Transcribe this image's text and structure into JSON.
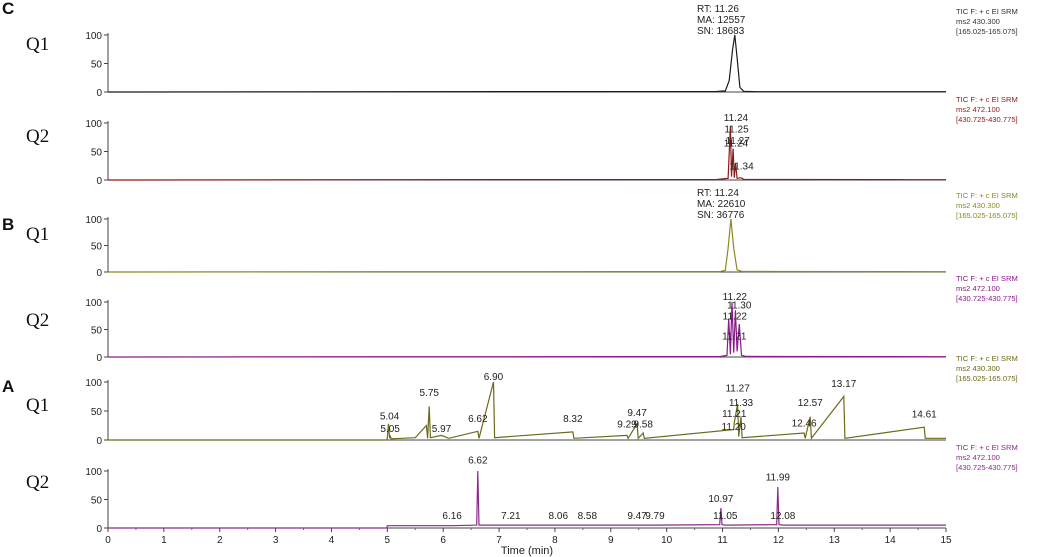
{
  "section_letters": [
    "C",
    "B",
    "A"
  ],
  "x_axis": {
    "label": "Time (min)",
    "ticks": [
      0,
      1,
      2,
      3,
      4,
      5,
      6,
      7,
      8,
      9,
      10,
      11,
      12,
      13,
      14,
      15
    ],
    "range": [
      0,
      15
    ]
  },
  "chart_data": [
    {
      "type": "line",
      "group": "C",
      "q_label": "Q1",
      "color": "#1b1b1b",
      "y_ticks": [
        0,
        50,
        100
      ],
      "ylim": [
        0,
        100
      ],
      "legend": [
        "TIC F: + c EI SRM",
        "ms2 430.300",
        "[165.025-165.075]"
      ],
      "legend_color": "#333333",
      "annotations_block": [
        "RT: 11.26",
        "MA: 12557",
        "SN: 18683"
      ],
      "points": [
        [
          0,
          0
        ],
        [
          5,
          0.6
        ],
        [
          10.9,
          0.8
        ],
        [
          11.05,
          2
        ],
        [
          11.12,
          20
        ],
        [
          11.18,
          75
        ],
        [
          11.22,
          100
        ],
        [
          11.26,
          60
        ],
        [
          11.31,
          8
        ],
        [
          11.38,
          1
        ],
        [
          11.6,
          0.6
        ],
        [
          15,
          0.6
        ]
      ],
      "peak_labels": []
    },
    {
      "type": "line",
      "group": "C",
      "q_label": "Q2",
      "color": "#8b1a1a",
      "y_ticks": [
        0,
        50,
        100
      ],
      "ylim": [
        0,
        100
      ],
      "legend": [
        "TIC F: + c EI SRM",
        "ms2 472.100",
        "[430.725-430.775]"
      ],
      "legend_color": "#8b1a1a",
      "points": [
        [
          0,
          0
        ],
        [
          5,
          0.6
        ],
        [
          10.9,
          0.8
        ],
        [
          11.1,
          3
        ],
        [
          11.14,
          95
        ],
        [
          11.16,
          6
        ],
        [
          11.19,
          55
        ],
        [
          11.21,
          4
        ],
        [
          11.23,
          30
        ],
        [
          11.26,
          3
        ],
        [
          11.33,
          4
        ],
        [
          11.38,
          1
        ],
        [
          14.4,
          0.6
        ],
        [
          15,
          0.6
        ]
      ],
      "peak_labels": [
        {
          "text": "11.24",
          "x": 11.24,
          "y": 100
        },
        {
          "text": "11.25",
          "x": 11.25,
          "y": 80
        },
        {
          "text": "11.24",
          "x": 11.24,
          "y": 55
        },
        {
          "text": "11.27",
          "x": 11.27,
          "y": 60
        },
        {
          "text": "11.34",
          "x": 11.34,
          "y": 15
        }
      ]
    },
    {
      "type": "line",
      "group": "B",
      "q_label": "Q1",
      "color": "#8a8a1f",
      "y_ticks": [
        0,
        50,
        100
      ],
      "ylim": [
        0,
        100
      ],
      "legend": [
        "TIC F: + c EI SRM",
        "ms2 430.300",
        "[165.025-165.075]"
      ],
      "legend_color": "#8a8a1f",
      "annotations_block": [
        "RT: 11.24",
        "MA: 22610",
        "SN: 36776"
      ],
      "points": [
        [
          0,
          0
        ],
        [
          5,
          0.6
        ],
        [
          10.95,
          0.8
        ],
        [
          11.05,
          3
        ],
        [
          11.1,
          45
        ],
        [
          11.15,
          100
        ],
        [
          11.2,
          45
        ],
        [
          11.26,
          4
        ],
        [
          11.35,
          1
        ],
        [
          15,
          0.6
        ]
      ],
      "peak_labels": []
    },
    {
      "type": "line",
      "group": "B",
      "q_label": "Q2",
      "color": "#8b1a8b",
      "y_ticks": [
        0,
        50,
        100
      ],
      "ylim": [
        0,
        100
      ],
      "legend": [
        "TIC F: + c EI SRM",
        "ms2 472.100",
        "[430.725-430.775]"
      ],
      "legend_color": "#8b1a8b",
      "points": [
        [
          0,
          0
        ],
        [
          5,
          0.6
        ],
        [
          10.95,
          0.8
        ],
        [
          11.08,
          3
        ],
        [
          11.11,
          70
        ],
        [
          11.14,
          5
        ],
        [
          11.17,
          100
        ],
        [
          11.2,
          8
        ],
        [
          11.23,
          85
        ],
        [
          11.26,
          10
        ],
        [
          11.3,
          60
        ],
        [
          11.34,
          3
        ],
        [
          11.42,
          1
        ],
        [
          15,
          0.6
        ]
      ],
      "peak_labels": [
        {
          "text": "11.22",
          "x": 11.22,
          "y": 100
        },
        {
          "text": "11.30",
          "x": 11.3,
          "y": 85
        },
        {
          "text": "11.22",
          "x": 11.22,
          "y": 65
        },
        {
          "text": "11.21",
          "x": 11.21,
          "y": 28
        }
      ]
    },
    {
      "type": "line",
      "group": "A",
      "q_label": "Q1",
      "color": "#6b6b1a",
      "y_ticks": [
        0,
        50,
        100
      ],
      "ylim": [
        0,
        100
      ],
      "legend": [
        "TIC F: + c EI SRM",
        "ms2 430.300",
        "[165.025-165.075]"
      ],
      "legend_color": "#6b6b1a",
      "points": [
        [
          0,
          0
        ],
        [
          4.99,
          0
        ],
        [
          5,
          3
        ],
        [
          5.02,
          28
        ],
        [
          5.04,
          3
        ],
        [
          5.05,
          8
        ],
        [
          5.07,
          2
        ],
        [
          5.5,
          4
        ],
        [
          5.7,
          25
        ],
        [
          5.72,
          3
        ],
        [
          5.75,
          58
        ],
        [
          5.77,
          4
        ],
        [
          5.97,
          8
        ],
        [
          6.1,
          3
        ],
        [
          6.62,
          15
        ],
        [
          6.64,
          3
        ],
        [
          6.9,
          100
        ],
        [
          6.92,
          4
        ],
        [
          8.32,
          14
        ],
        [
          8.34,
          3
        ],
        [
          9.29,
          8
        ],
        [
          9.31,
          3
        ],
        [
          9.47,
          28
        ],
        [
          9.49,
          3
        ],
        [
          9.58,
          12
        ],
        [
          9.6,
          3
        ],
        [
          11.2,
          18
        ],
        [
          11.21,
          30
        ],
        [
          11.27,
          62
        ],
        [
          11.29,
          6
        ],
        [
          11.33,
          40
        ],
        [
          11.35,
          4
        ],
        [
          12.46,
          12
        ],
        [
          12.48,
          3
        ],
        [
          12.57,
          40
        ],
        [
          12.59,
          3
        ],
        [
          13.17,
          75
        ],
        [
          13.19,
          3
        ],
        [
          14.61,
          22
        ],
        [
          14.63,
          3
        ],
        [
          15,
          3
        ]
      ],
      "peak_labels": [
        {
          "text": "6.90",
          "x": 6.9,
          "y": 100
        },
        {
          "text": "5.75",
          "x": 5.75,
          "y": 72
        },
        {
          "text": "5.04",
          "x": 5.04,
          "y": 32
        },
        {
          "text": "5.05",
          "x": 5.05,
          "y": 10
        },
        {
          "text": "5.97",
          "x": 5.97,
          "y": 10
        },
        {
          "text": "6.62",
          "x": 6.62,
          "y": 28
        },
        {
          "text": "8.32",
          "x": 8.32,
          "y": 28
        },
        {
          "text": "9.29",
          "x": 9.29,
          "y": 18
        },
        {
          "text": "9.47",
          "x": 9.47,
          "y": 38
        },
        {
          "text": "9.58",
          "x": 9.58,
          "y": 18
        },
        {
          "text": "11.21",
          "x": 11.21,
          "y": 36
        },
        {
          "text": "11.20",
          "x": 11.2,
          "y": 14
        },
        {
          "text": "11.27",
          "x": 11.27,
          "y": 80
        },
        {
          "text": "11.33",
          "x": 11.33,
          "y": 55
        },
        {
          "text": "12.46",
          "x": 12.46,
          "y": 20
        },
        {
          "text": "12.57",
          "x": 12.57,
          "y": 55
        },
        {
          "text": "13.17",
          "x": 13.17,
          "y": 88
        },
        {
          "text": "14.61",
          "x": 14.61,
          "y": 35
        }
      ]
    },
    {
      "type": "line",
      "group": "A",
      "q_label": "Q2",
      "color": "#8b2a8b",
      "y_ticks": [
        0,
        50,
        100
      ],
      "ylim": [
        0,
        100
      ],
      "legend": [
        "TIC F: + c EI SRM",
        "ms2 472.100",
        "[430.725-430.775]"
      ],
      "legend_color": "#8b2a8b",
      "points": [
        [
          0,
          0
        ],
        [
          4.99,
          0
        ],
        [
          5,
          4
        ],
        [
          6.16,
          4
        ],
        [
          6.6,
          5
        ],
        [
          6.62,
          100
        ],
        [
          6.64,
          5
        ],
        [
          7.21,
          5
        ],
        [
          8.06,
          5
        ],
        [
          8.58,
          5
        ],
        [
          9.47,
          5
        ],
        [
          9.79,
          5
        ],
        [
          10.95,
          6
        ],
        [
          10.97,
          35
        ],
        [
          10.99,
          6
        ],
        [
          11.05,
          5
        ],
        [
          11.97,
          6
        ],
        [
          11.99,
          72
        ],
        [
          12.01,
          6
        ],
        [
          12.08,
          5
        ],
        [
          15,
          5
        ]
      ],
      "peak_labels": [
        {
          "text": "6.62",
          "x": 6.62,
          "y": 110
        },
        {
          "text": "6.16",
          "x": 6.16,
          "y": 12
        },
        {
          "text": "7.21",
          "x": 7.21,
          "y": 12
        },
        {
          "text": "8.06",
          "x": 8.06,
          "y": 12
        },
        {
          "text": "8.58",
          "x": 8.58,
          "y": 12
        },
        {
          "text": "9.47",
          "x": 9.47,
          "y": 12
        },
        {
          "text": "9.79",
          "x": 9.79,
          "y": 12
        },
        {
          "text": "10.97",
          "x": 10.97,
          "y": 42
        },
        {
          "text": "11.05",
          "x": 11.05,
          "y": 12
        },
        {
          "text": "11.99",
          "x": 11.99,
          "y": 80
        },
        {
          "text": "12.08",
          "x": 12.08,
          "y": 12
        }
      ]
    }
  ]
}
